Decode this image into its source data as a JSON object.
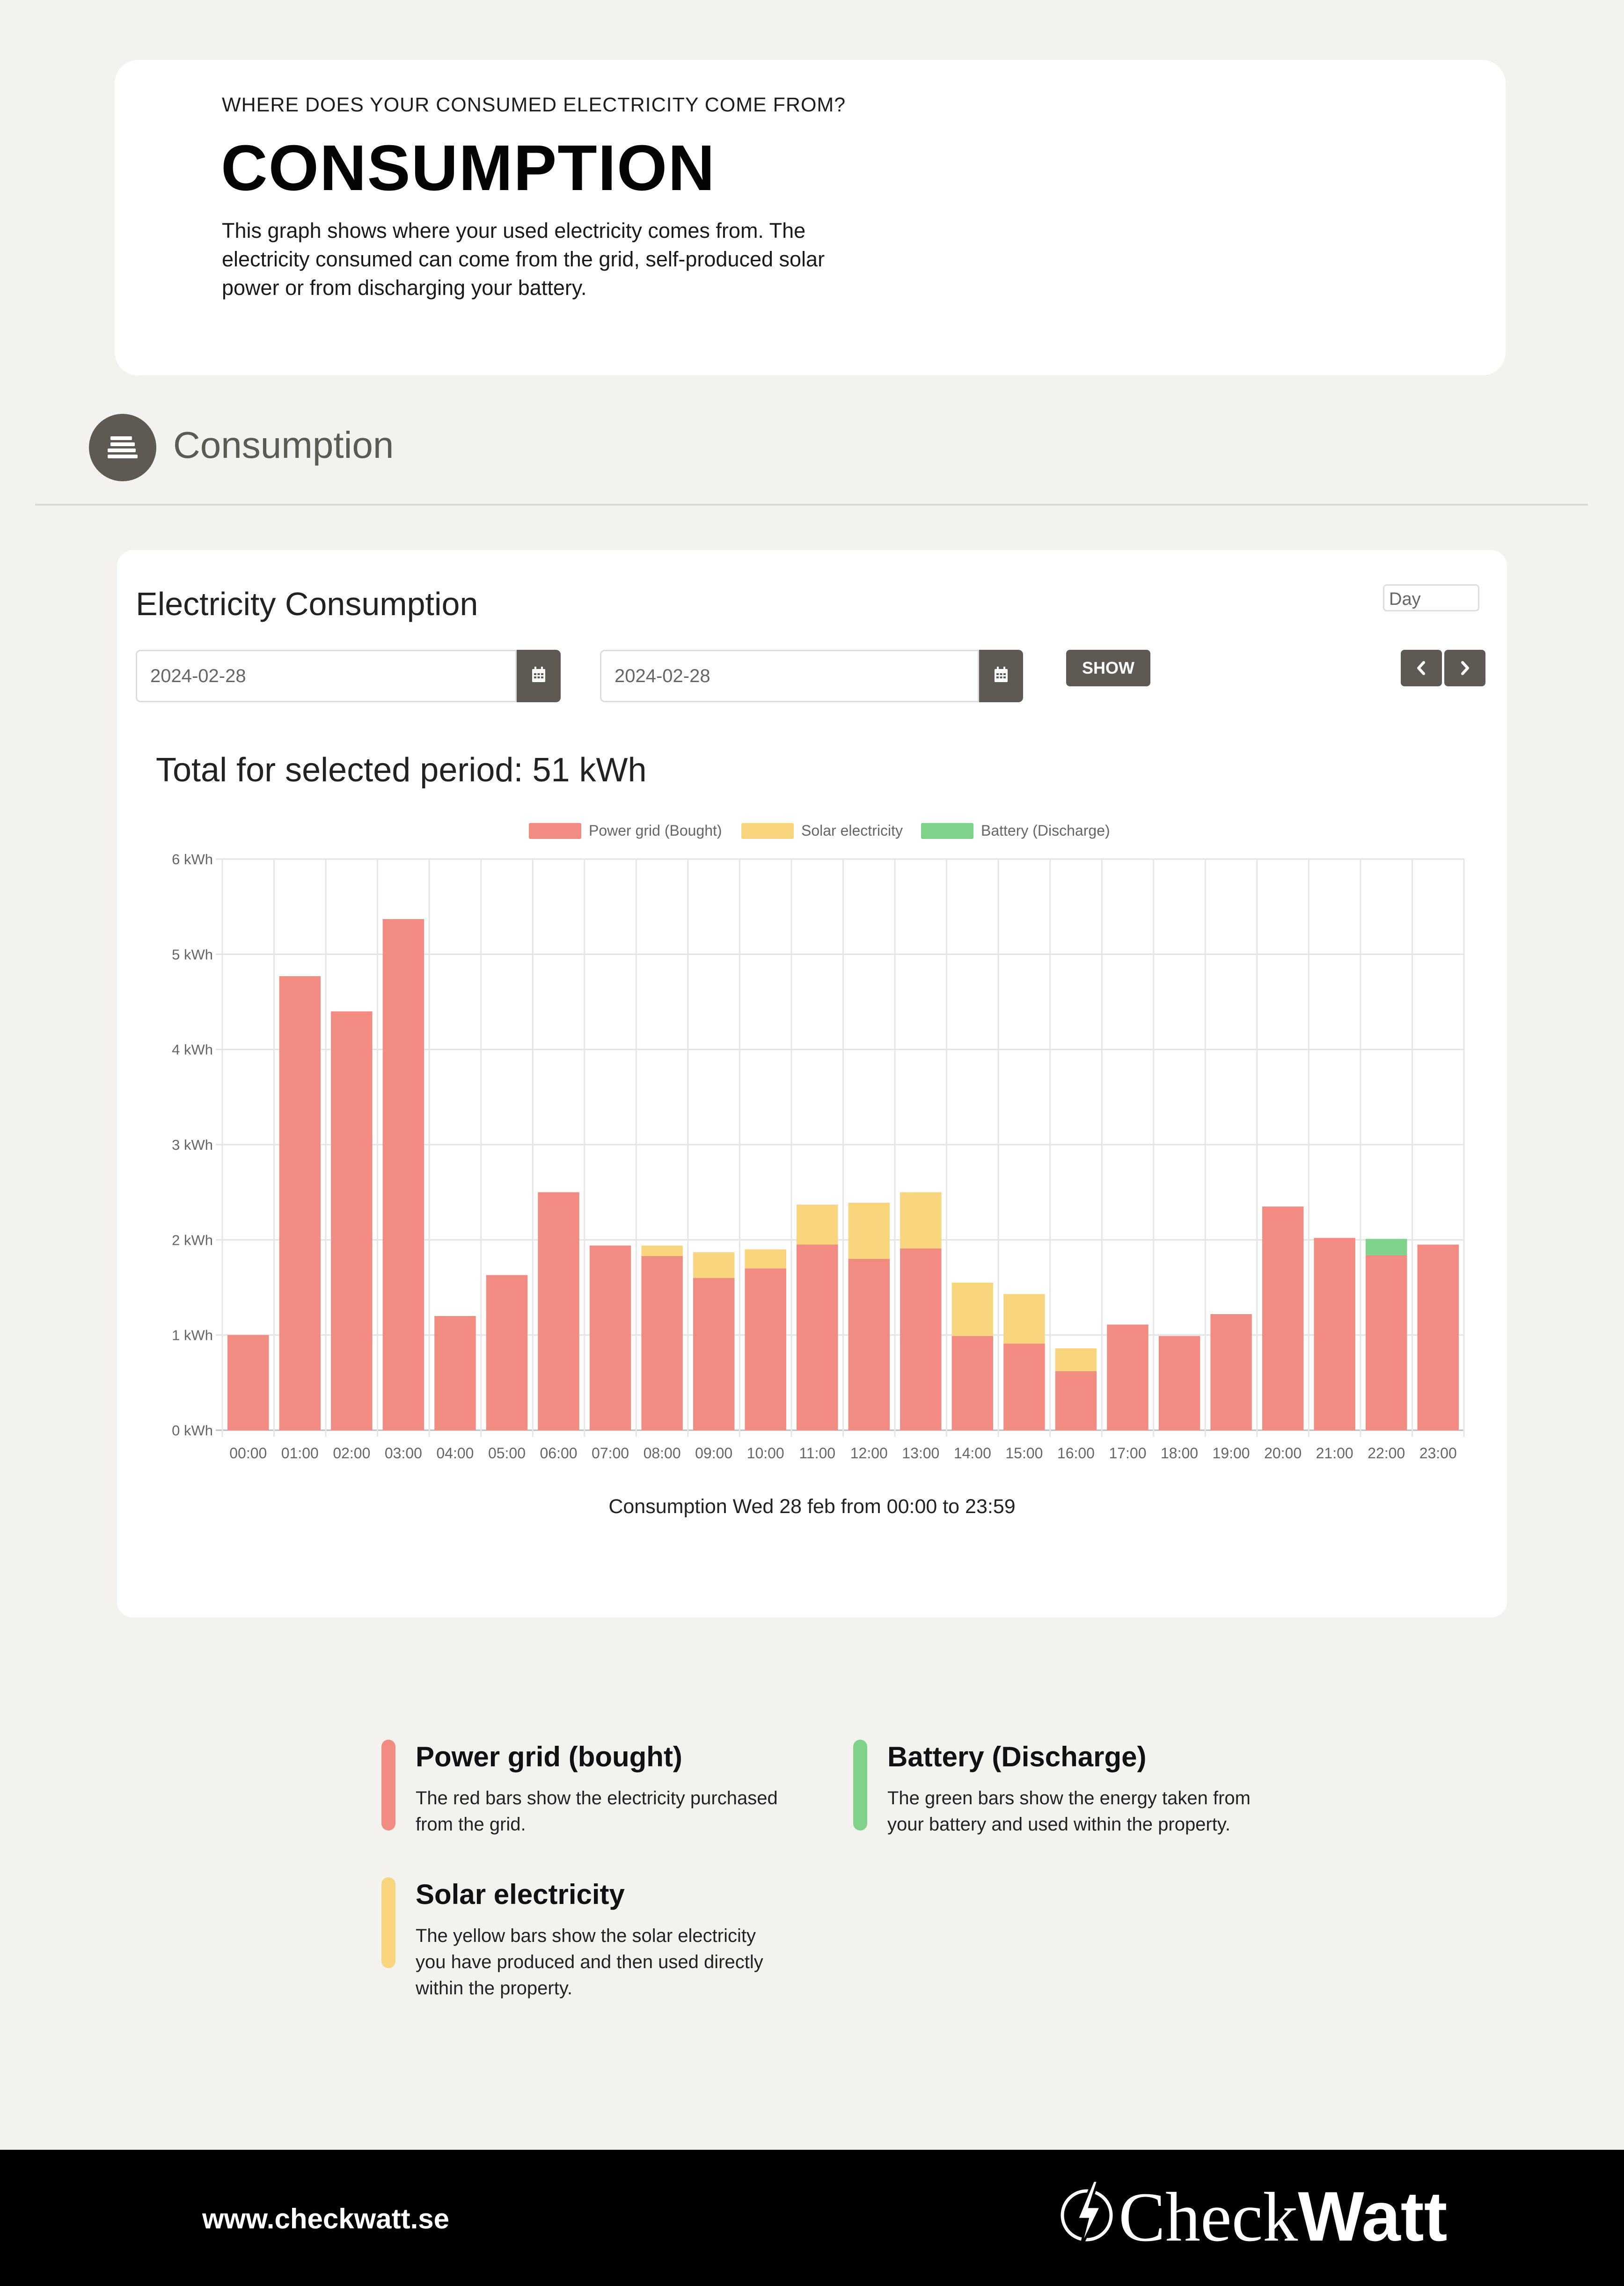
{
  "intro": {
    "eyebrow": "WHERE DOES YOUR CONSUMED ELECTRICITY COME FROM?",
    "title": "CONSUMPTION",
    "text": "This graph shows where your used electricity comes from. The electricity consumed can come from the grid, self-produced solar power or from discharging your battery."
  },
  "section": {
    "title": "Consumption",
    "icon": "list-icon"
  },
  "panel": {
    "heading": "Electricity Consumption",
    "range_select": "Day",
    "from_date": "2024-02-28",
    "to_date": "2024-02-28",
    "show_label": "SHOW",
    "total": "Total for selected period: 51 kWh",
    "caption": "Consumption Wed 28 feb from 00:00 to 23:59"
  },
  "chart_data": {
    "type": "bar",
    "stacked": true,
    "categories": [
      "00:00",
      "01:00",
      "02:00",
      "03:00",
      "04:00",
      "05:00",
      "06:00",
      "07:00",
      "08:00",
      "09:00",
      "10:00",
      "11:00",
      "12:00",
      "13:00",
      "14:00",
      "15:00",
      "16:00",
      "17:00",
      "18:00",
      "19:00",
      "20:00",
      "21:00",
      "22:00",
      "23:00"
    ],
    "series": [
      {
        "name": "Power grid (Bought)",
        "color": "#f28b82",
        "values": [
          1.0,
          4.77,
          4.4,
          5.37,
          1.2,
          1.63,
          2.5,
          1.94,
          1.83,
          1.6,
          1.7,
          1.95,
          1.8,
          1.91,
          0.99,
          0.91,
          0.62,
          1.11,
          0.99,
          1.22,
          2.35,
          2.02,
          1.84,
          1.95
        ]
      },
      {
        "name": "Solar electricity",
        "color": "#f9d57e",
        "values": [
          0,
          0,
          0,
          0,
          0,
          0,
          0,
          0,
          0.11,
          0.27,
          0.2,
          0.42,
          0.59,
          0.59,
          0.56,
          0.52,
          0.24,
          0,
          0,
          0,
          0,
          0,
          0,
          0
        ]
      },
      {
        "name": "Battery (Discharge)",
        "color": "#7fd28a",
        "values": [
          0,
          0,
          0,
          0,
          0,
          0,
          0,
          0,
          0,
          0,
          0,
          0,
          0,
          0,
          0,
          0,
          0,
          0,
          0,
          0,
          0,
          0,
          0.17,
          0
        ]
      }
    ],
    "y_ticks": [
      "0 kWh",
      "1 kWh",
      "2 kWh",
      "3 kWh",
      "4 kWh",
      "5 kWh",
      "6 kWh"
    ],
    "ylim": [
      0,
      6
    ],
    "grid": true,
    "legend_position": "top"
  },
  "explanations": [
    {
      "title": "Power grid (bought)",
      "text": "The red bars show the electricity purchased from the grid.",
      "color": "#f28b82"
    },
    {
      "title": "Battery (Discharge)",
      "text": "The green bars show the energy taken from your battery and used within the property.",
      "color": "#7fd28a"
    },
    {
      "title": "Solar electricity",
      "text": "The yellow bars show the solar electricity you have produced and then used directly within the property.",
      "color": "#f9d57e"
    }
  ],
  "footer": {
    "url": "www.checkwatt.se",
    "logo_regular": "Check",
    "logo_bold": "Watt"
  }
}
